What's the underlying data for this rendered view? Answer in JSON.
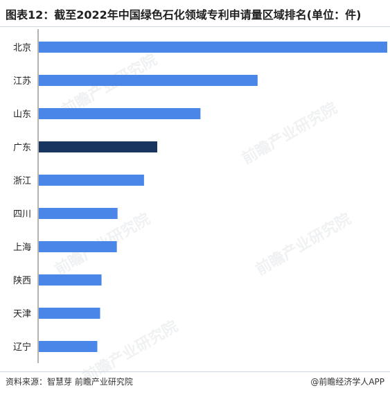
{
  "title": "图表12：截至2022年中国绿色石化领域专利申请量区域排名(单位：件)",
  "source": "资料来源：智慧芽 前瞻产业研究院",
  "brand": "@前瞻经济学人APP",
  "watermark": "前瞻产业研究院",
  "colors": {
    "bar": "#4a86e8",
    "highlight": "#17355f",
    "axis": "#666666"
  },
  "chart_data": {
    "type": "bar",
    "orientation": "horizontal",
    "categories": [
      "北京",
      "江苏",
      "山东",
      "广东",
      "浙江",
      "四川",
      "上海",
      "陕西",
      "天津",
      "辽宁"
    ],
    "values": [
      100,
      62.8,
      46.4,
      34,
      30.2,
      22.6,
      22.4,
      18,
      17.6,
      16.8
    ],
    "highlight_category": "广东",
    "xlim": [
      0,
      100
    ],
    "grid": false,
    "legend": "none"
  }
}
